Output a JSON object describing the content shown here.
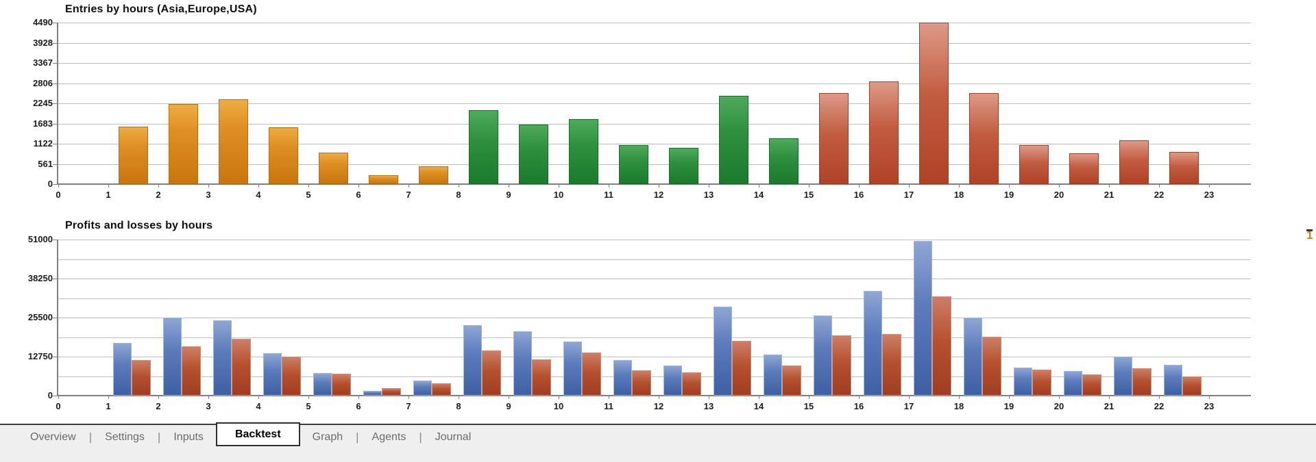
{
  "right_edge": {
    "glyph": "1"
  },
  "tabs": {
    "separator": "|",
    "items": [
      {
        "label": "Overview",
        "active": false
      },
      {
        "label": "Settings",
        "active": false
      },
      {
        "label": "Inputs",
        "active": false
      },
      {
        "label": "Backtest",
        "active": true
      },
      {
        "label": "Graph",
        "active": false
      },
      {
        "label": "Agents",
        "active": false
      },
      {
        "label": "Journal",
        "active": false
      }
    ]
  },
  "chart_data": [
    {
      "type": "bar",
      "title": "Entries by hours (Asia,Europe,USA)",
      "xlabel": "",
      "ylabel": "",
      "categories": [
        "0",
        "1",
        "2",
        "3",
        "4",
        "5",
        "6",
        "7",
        "8",
        "9",
        "10",
        "11",
        "12",
        "13",
        "14",
        "15",
        "16",
        "17",
        "18",
        "19",
        "20",
        "21",
        "22",
        "23"
      ],
      "values": [
        0,
        1600,
        2230,
        2350,
        1570,
        870,
        250,
        500,
        2050,
        1660,
        1810,
        1080,
        1000,
        2450,
        1280,
        2530,
        2860,
        4490,
        2530,
        1090,
        850,
        1210,
        900,
        0
      ],
      "sessions": [
        "none",
        "asia",
        "asia",
        "asia",
        "asia",
        "asia",
        "asia",
        "asia",
        "europe",
        "europe",
        "europe",
        "europe",
        "europe",
        "europe",
        "europe",
        "usa",
        "usa",
        "usa",
        "usa",
        "usa",
        "usa",
        "usa",
        "usa",
        "none"
      ],
      "session_colors": {
        "asia": "#d8861b",
        "europe": "#2d8c3c",
        "usa": "#b94b30"
      },
      "ylim": [
        0,
        4490
      ],
      "y_tick_labels": [
        4490,
        3928,
        3367,
        2806,
        2245,
        1683,
        1122,
        561,
        0
      ],
      "grid": "on",
      "legend": "none"
    },
    {
      "type": "bar",
      "title": "Profits and losses by hours",
      "xlabel": "",
      "ylabel": "",
      "categories": [
        "0",
        "1",
        "2",
        "3",
        "4",
        "5",
        "6",
        "7",
        "8",
        "9",
        "10",
        "11",
        "12",
        "13",
        "14",
        "15",
        "16",
        "17",
        "18",
        "19",
        "20",
        "21",
        "22",
        "23"
      ],
      "series": [
        {
          "name": "profits",
          "color": "#4c70b0",
          "values": [
            0,
            17200,
            25400,
            24700,
            13900,
            7400,
            1600,
            4900,
            23100,
            21100,
            17700,
            11600,
            9800,
            29100,
            13400,
            26100,
            34200,
            50500,
            25500,
            9200,
            8000,
            12700,
            10000,
            0
          ]
        },
        {
          "name": "losses",
          "color": "#ae4a2d",
          "values": [
            0,
            11700,
            16100,
            18600,
            12800,
            7100,
            2400,
            4000,
            14800,
            11800,
            14100,
            8300,
            7600,
            18000,
            9800,
            19700,
            20100,
            32400,
            19200,
            8500,
            6900,
            8900,
            6300,
            0
          ]
        }
      ],
      "ylim": [
        0,
        51000
      ],
      "y_tick_labels": [
        51000,
        38250,
        25500,
        12750,
        0
      ],
      "y_minor_step": 6375,
      "grid": "on",
      "legend": "none"
    }
  ]
}
